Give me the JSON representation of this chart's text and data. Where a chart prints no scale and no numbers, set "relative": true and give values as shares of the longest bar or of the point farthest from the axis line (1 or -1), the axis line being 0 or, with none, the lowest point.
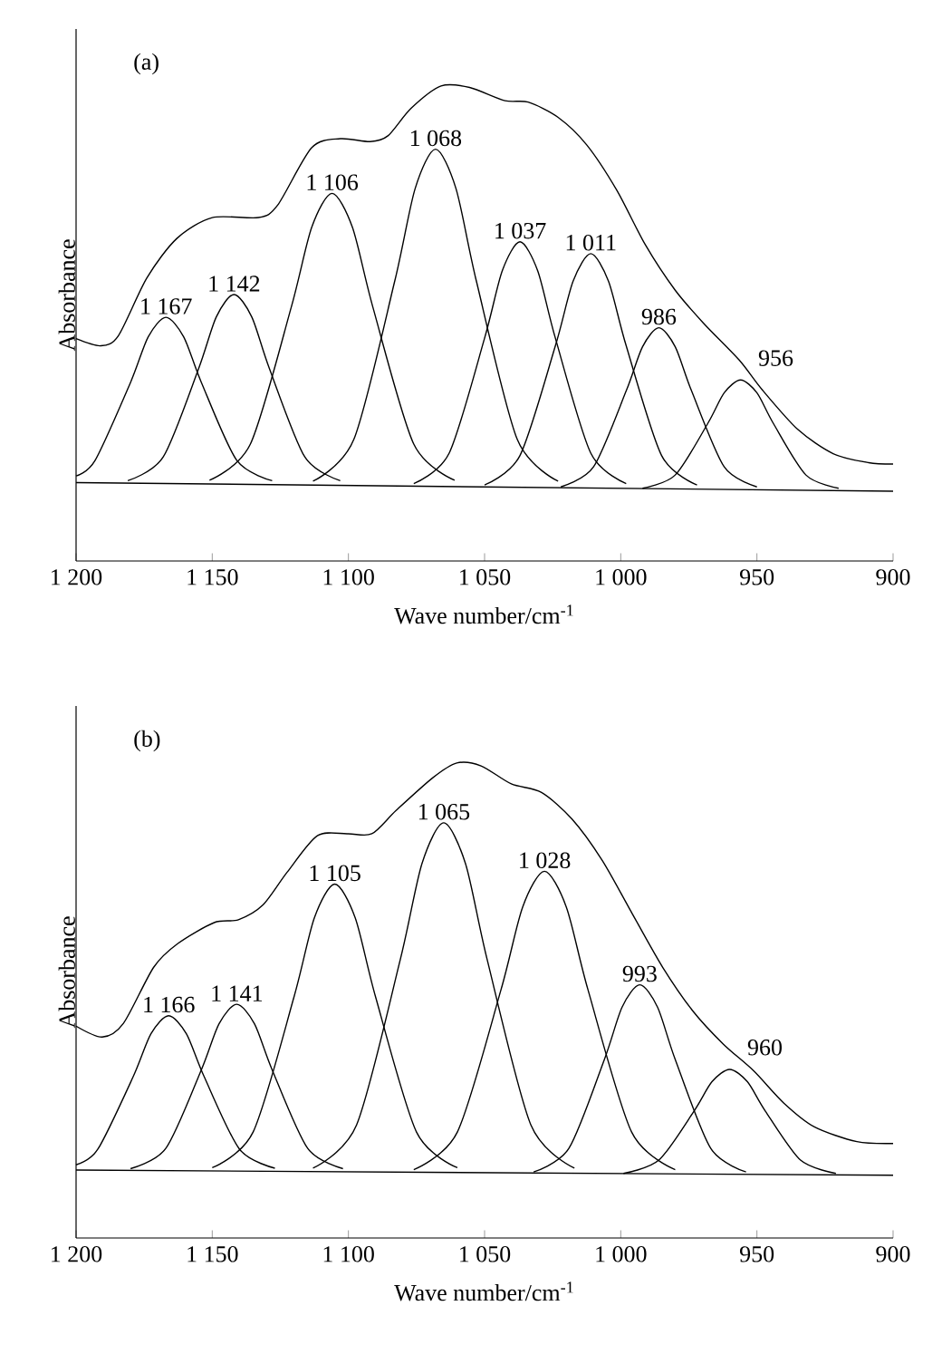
{
  "chart_data": [
    {
      "type": "line",
      "title": "(a)",
      "xlabel": "Wave number/cm$^{-1}$",
      "ylabel": "Absorbance",
      "relative": true,
      "xlim": [
        1200,
        900
      ],
      "xticks": [
        {
          "value": 1200,
          "label": "1 200"
        },
        {
          "value": 1150,
          "label": "1 150"
        },
        {
          "value": 1100,
          "label": "1 100"
        },
        {
          "value": 1050,
          "label": "1 050"
        },
        {
          "value": 1000,
          "label": "1 000"
        },
        950,
        900
      ],
      "series": [
        {
          "color": "#000000",
          "x": [
            1200,
            1191,
            1184.5,
            1174,
            1163,
            1150,
            1133,
            1126,
            1113.5,
            1103,
            1092,
            1085.5,
            1077,
            1066,
            1055.5,
            1042.5,
            1034,
            1023,
            1012.5,
            1001.5,
            991,
            980,
            969.5,
            956.5,
            948,
            935,
            922,
            909,
            900
          ],
          "values": [
            0.468,
            0.453,
            0.474,
            0.596,
            0.679,
            0.723,
            0.723,
            0.749,
            0.87,
            0.889,
            0.883,
            0.895,
            0.953,
            1.0,
            0.997,
            0.969,
            0.966,
            0.934,
            0.876,
            0.781,
            0.666,
            0.57,
            0.5,
            0.423,
            0.36,
            0.277,
            0.226,
            0.207,
            0.204
          ]
        },
        {
          "color": "#000000",
          "x": [
            1200,
            1193,
            1180,
            1173.5,
            1167,
            1160.5,
            1154,
            1141,
            1128
          ],
          "values": [
            0.179,
            0.212,
            0.376,
            0.472,
            0.513,
            0.472,
            0.376,
            0.212,
            0.169
          ]
        },
        {
          "color": "#000000",
          "x": [
            1181,
            1168,
            1155,
            1148.5,
            1142,
            1135.5,
            1129,
            1116,
            1103
          ],
          "values": [
            0.169,
            0.219,
            0.405,
            0.514,
            0.561,
            0.514,
            0.405,
            0.219,
            0.169
          ]
        },
        {
          "color": "#000000",
          "x": [
            1151,
            1136,
            1121,
            1113.5,
            1106,
            1098.5,
            1091,
            1076,
            1061
          ],
          "values": [
            0.17,
            0.246,
            0.534,
            0.702,
            0.774,
            0.702,
            0.534,
            0.246,
            0.17
          ]
        },
        {
          "color": "#000000",
          "x": [
            1113,
            1098,
            1083,
            1075.5,
            1068,
            1060.5,
            1053,
            1038,
            1023
          ],
          "values": [
            0.168,
            0.256,
            0.589,
            0.784,
            0.867,
            0.784,
            0.589,
            0.256,
            0.168
          ]
        },
        {
          "color": "#000000",
          "x": [
            1076,
            1063,
            1050,
            1043.5,
            1037,
            1030.5,
            1024,
            1011,
            998
          ],
          "values": [
            0.163,
            0.227,
            0.469,
            0.611,
            0.672,
            0.611,
            0.469,
            0.227,
            0.163
          ]
        },
        {
          "color": "#000000",
          "x": [
            1050,
            1037,
            1024,
            1017.5,
            1011,
            1004.5,
            998,
            985,
            972
          ],
          "values": [
            0.16,
            0.222,
            0.453,
            0.589,
            0.647,
            0.589,
            0.453,
            0.222,
            0.16
          ]
        },
        {
          "color": "#000000",
          "x": [
            1022,
            1010,
            998,
            992,
            986,
            980,
            974,
            962,
            950
          ],
          "values": [
            0.156,
            0.198,
            0.358,
            0.451,
            0.491,
            0.451,
            0.358,
            0.198,
            0.156
          ]
        },
        {
          "color": "#000000",
          "x": [
            992,
            980,
            968,
            962,
            956,
            950,
            944,
            932,
            920
          ],
          "values": [
            0.153,
            0.181,
            0.29,
            0.354,
            0.381,
            0.354,
            0.29,
            0.181,
            0.153
          ]
        },
        {
          "color": "#000000",
          "x": [
            1200,
            900
          ],
          "values": [
            0.165,
            0.147
          ]
        }
      ],
      "annotations": [
        {
          "text": "1 167",
          "x": 1167,
          "y": 0.513
        },
        {
          "text": "1 142",
          "x": 1142,
          "y": 0.561
        },
        {
          "text": "1 106",
          "x": 1106,
          "y": 0.774
        },
        {
          "text": "1 068",
          "x": 1068,
          "y": 0.867
        },
        {
          "text": "1 037",
          "x": 1037,
          "y": 0.672
        },
        {
          "text": "1 011",
          "x": 1011,
          "y": 0.647
        },
        {
          "text": "986",
          "x": 986,
          "y": 0.491
        },
        {
          "text": "956",
          "x": 956,
          "y": 0.381
        }
      ]
    },
    {
      "type": "line",
      "title": "(b)",
      "xlabel": "Wave number/cm$^{-1}$",
      "ylabel": "Absorbance",
      "relative": true,
      "xlim": [
        1200,
        900
      ],
      "xticks": [
        {
          "value": 1200,
          "label": "1 200"
        },
        {
          "value": 1150,
          "label": "1 150"
        },
        {
          "value": 1100,
          "label": "1 100"
        },
        {
          "value": 1050,
          "label": "1 050"
        },
        {
          "value": 1000,
          "label": "1 000"
        },
        950,
        900
      ],
      "series": [
        {
          "color": "#000000",
          "x": [
            1200,
            1190.4,
            1182.6,
            1171.5,
            1162.6,
            1149.3,
            1140.4,
            1131.4,
            1122.5,
            1111.4,
            1100.3,
            1091.4,
            1082.5,
            1069,
            1060.2,
            1051.3,
            1040.2,
            1029.1,
            1017.9,
            1006.8,
            995.7,
            984.6,
            973.4,
            962.3,
            951.2,
            940.1,
            928.9,
            913.3,
            900
          ],
          "values": [
            0.446,
            0.423,
            0.452,
            0.57,
            0.62,
            0.664,
            0.67,
            0.701,
            0.77,
            0.847,
            0.851,
            0.851,
            0.9,
            0.969,
            1.0,
            0.994,
            0.956,
            0.938,
            0.882,
            0.795,
            0.682,
            0.57,
            0.477,
            0.408,
            0.352,
            0.284,
            0.234,
            0.203,
            0.199
          ]
        },
        {
          "color": "#000000",
          "x": [
            1200,
            1192,
            1179,
            1172.5,
            1166,
            1159.5,
            1153,
            1140,
            1127
          ],
          "values": [
            0.154,
            0.187,
            0.34,
            0.43,
            0.468,
            0.43,
            0.34,
            0.187,
            0.147
          ]
        },
        {
          "color": "#000000",
          "x": [
            1180,
            1167,
            1154,
            1147.5,
            1141,
            1134.5,
            1128,
            1115,
            1102
          ],
          "values": [
            0.146,
            0.189,
            0.354,
            0.451,
            0.492,
            0.451,
            0.354,
            0.189,
            0.146
          ]
        },
        {
          "color": "#000000",
          "x": [
            1150,
            1135,
            1120,
            1112.5,
            1105,
            1097.5,
            1090,
            1075,
            1060
          ],
          "values": [
            0.148,
            0.223,
            0.507,
            0.674,
            0.745,
            0.674,
            0.507,
            0.223,
            0.148
          ]
        },
        {
          "color": "#000000",
          "x": [
            1113,
            1097,
            1081,
            1073,
            1065,
            1057,
            1049,
            1033,
            1017
          ],
          "values": [
            0.147,
            0.238,
            0.585,
            0.788,
            0.874,
            0.788,
            0.585,
            0.238,
            0.147
          ]
        },
        {
          "color": "#000000",
          "x": [
            1076,
            1060,
            1044,
            1036,
            1028,
            1020,
            1012,
            996,
            980
          ],
          "values": [
            0.144,
            0.223,
            0.522,
            0.697,
            0.772,
            0.697,
            0.522,
            0.223,
            0.144
          ]
        },
        {
          "color": "#000000",
          "x": [
            1032,
            1019,
            1006,
            999.5,
            993,
            986.5,
            980,
            967,
            954
          ],
          "values": [
            0.139,
            0.189,
            0.376,
            0.486,
            0.533,
            0.486,
            0.376,
            0.189,
            0.139
          ]
        },
        {
          "color": "#000000",
          "x": [
            999,
            986,
            973,
            966.5,
            960,
            953.5,
            947,
            934,
            921
          ],
          "values": [
            0.136,
            0.164,
            0.268,
            0.329,
            0.355,
            0.329,
            0.268,
            0.164,
            0.136
          ]
        },
        {
          "color": "#000000",
          "x": [
            1200,
            900
          ],
          "values": [
            0.143,
            0.132
          ]
        }
      ],
      "annotations": [
        {
          "text": "1 166",
          "x": 1166,
          "y": 0.468
        },
        {
          "text": "1 141",
          "x": 1141,
          "y": 0.492
        },
        {
          "text": "1 105",
          "x": 1105,
          "y": 0.745
        },
        {
          "text": "1 065",
          "x": 1065,
          "y": 0.874
        },
        {
          "text": "1 028",
          "x": 1028,
          "y": 0.772
        },
        {
          "text": "993",
          "x": 993,
          "y": 0.533
        },
        {
          "text": "960",
          "x": 960,
          "y": 0.355
        }
      ]
    }
  ]
}
